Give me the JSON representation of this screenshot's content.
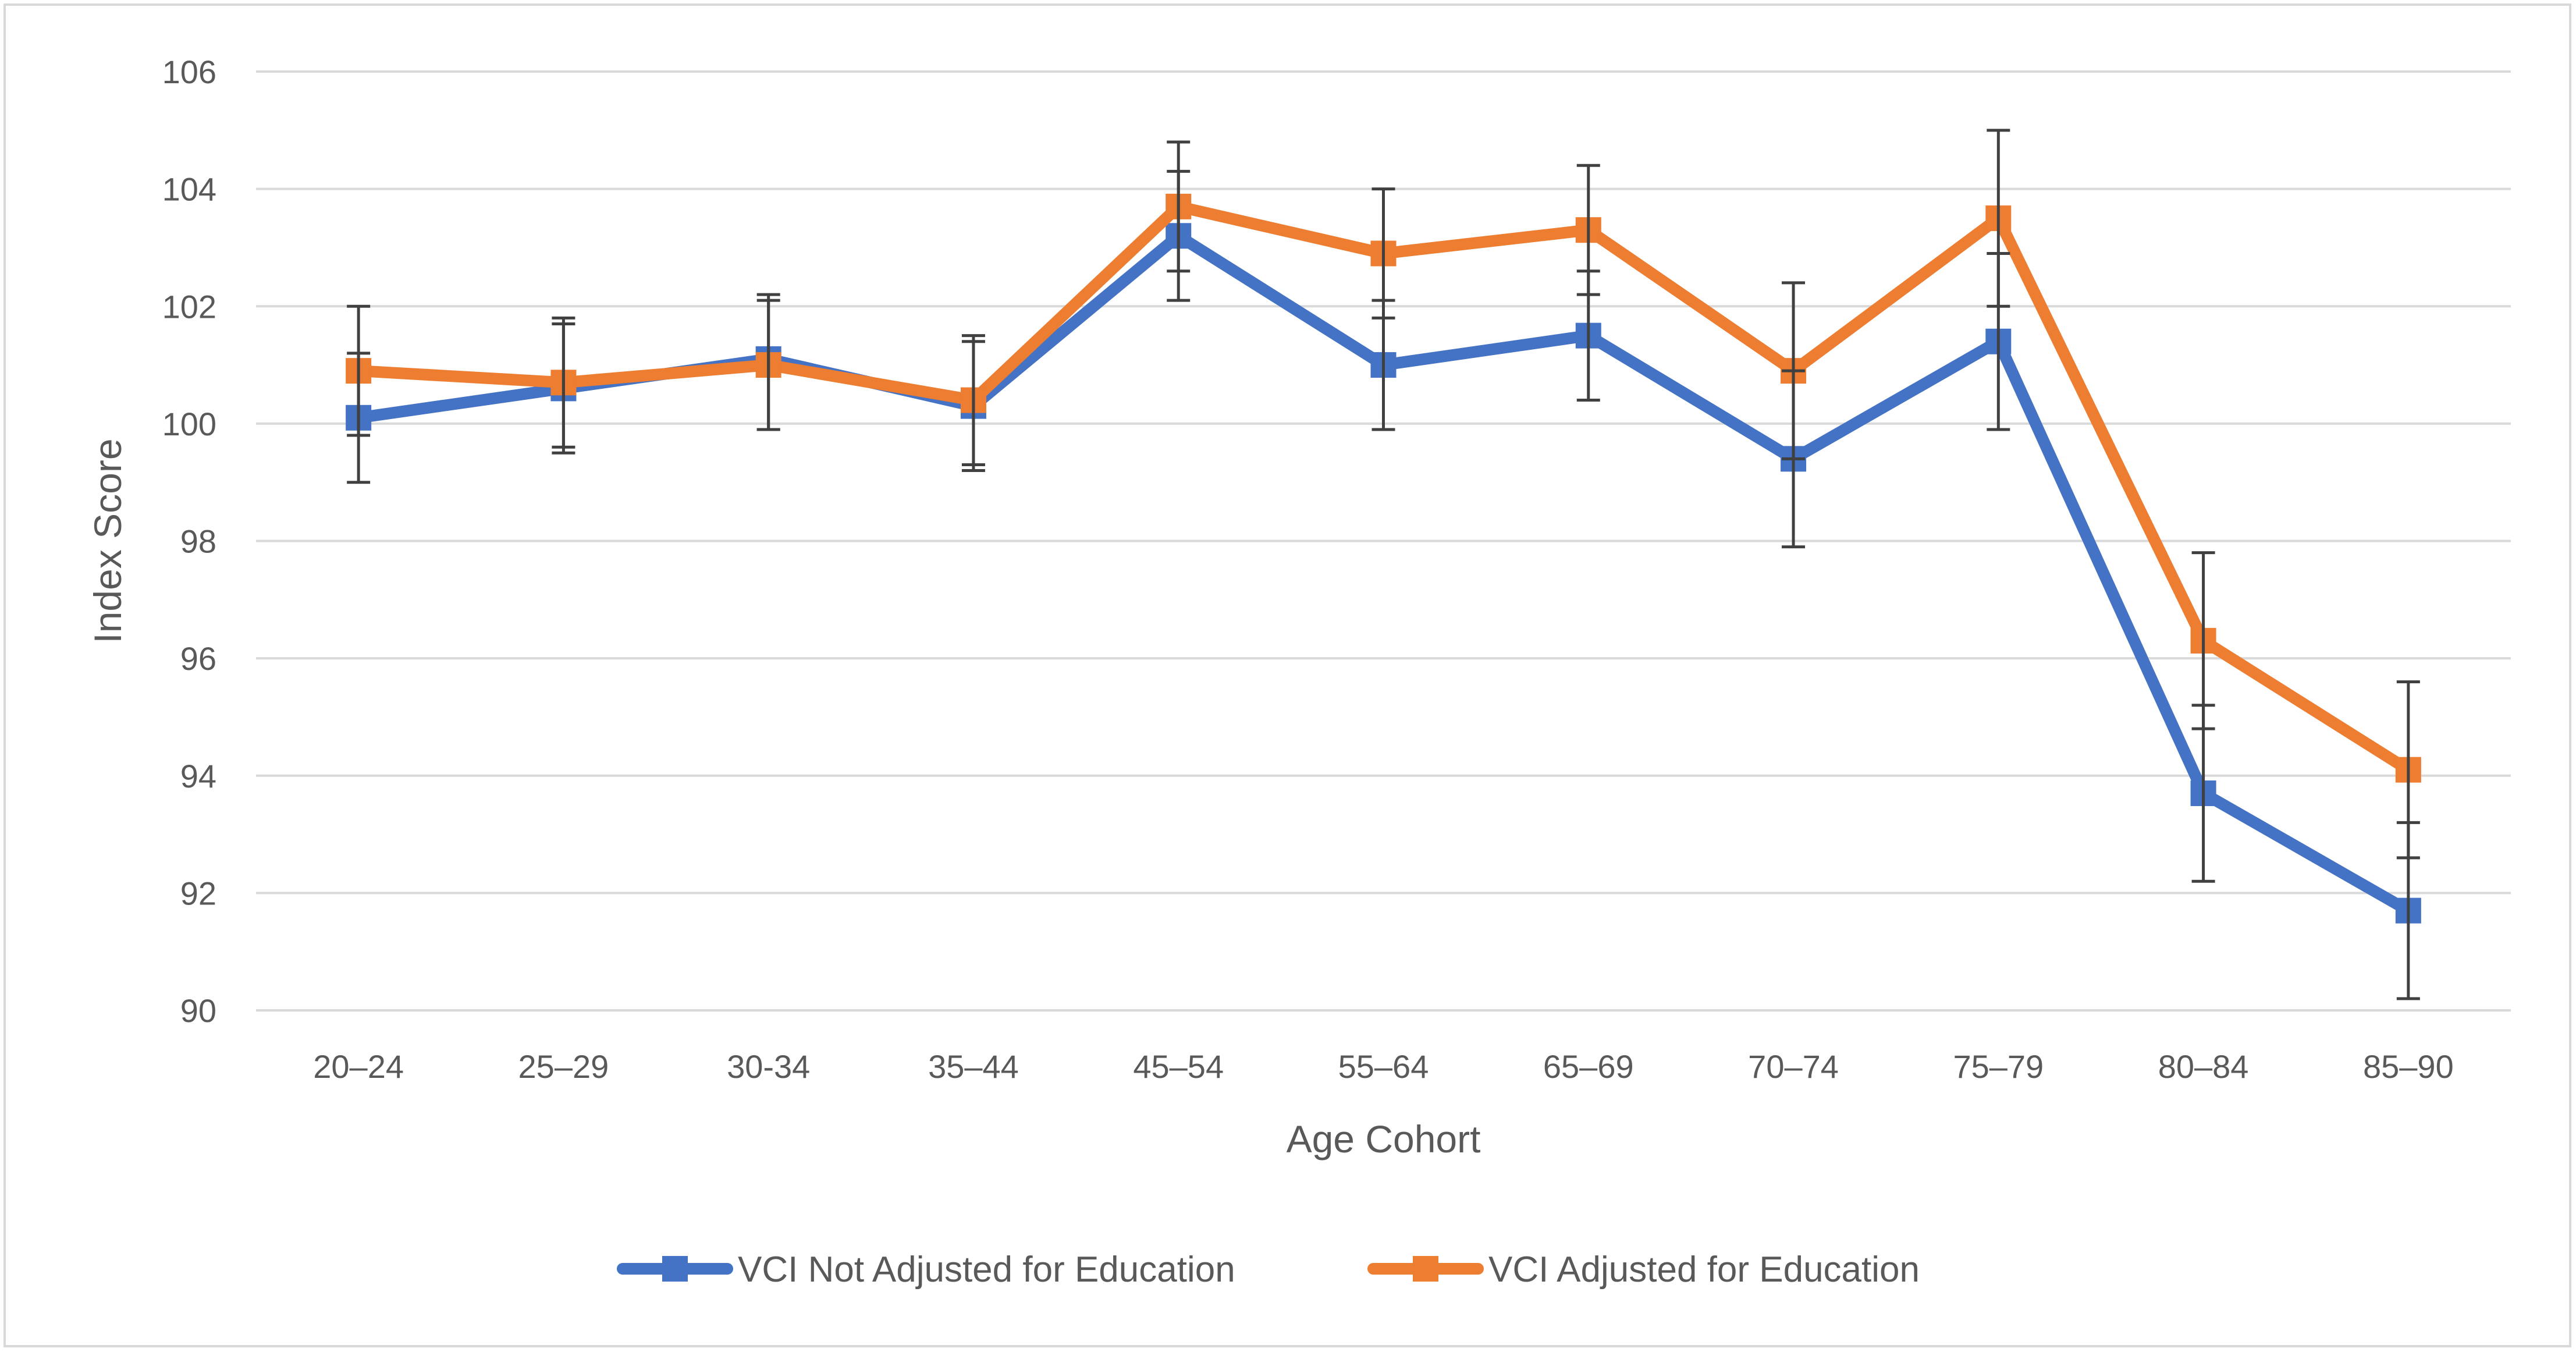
{
  "chart_data": {
    "type": "line",
    "title": "",
    "xlabel": "Age Cohort",
    "ylabel": "Index Score",
    "ylim": [
      90,
      106
    ],
    "y_ticks": [
      90,
      92,
      94,
      96,
      98,
      100,
      102,
      104,
      106
    ],
    "y_tick_labels": [
      "90",
      "92",
      "94",
      "96",
      "98",
      "100",
      "102",
      "104",
      "106"
    ],
    "grid": true,
    "legend_position": "bottom",
    "categories": [
      "20–24",
      "25–29",
      "30-34",
      "35–44",
      "45–54",
      "55–64",
      "65–69",
      "70–74",
      "75–79",
      "80–84",
      "85–90"
    ],
    "series": [
      {
        "name": "VCI Not Adjusted for Education",
        "color": "#4472c4",
        "values": [
          100.1,
          100.6,
          101.1,
          100.3,
          103.2,
          101.0,
          101.5,
          99.4,
          101.4,
          93.7,
          91.7
        ],
        "error_low": [
          99.0,
          99.5,
          99.9,
          99.2,
          102.1,
          99.9,
          100.4,
          97.9,
          99.9,
          92.2,
          90.2
        ],
        "error_high": [
          101.2,
          101.7,
          102.2,
          101.4,
          104.3,
          102.1,
          102.6,
          100.9,
          102.9,
          95.2,
          93.2
        ]
      },
      {
        "name": "VCI Adjusted for Education",
        "color": "#ed7d31",
        "values": [
          100.9,
          100.7,
          101.0,
          100.4,
          103.7,
          102.9,
          103.3,
          100.9,
          103.5,
          96.3,
          94.1
        ],
        "error_low": [
          99.8,
          99.6,
          99.9,
          99.3,
          102.6,
          101.8,
          102.2,
          99.4,
          102.0,
          94.8,
          92.6
        ],
        "error_high": [
          102.0,
          101.8,
          102.1,
          101.5,
          104.8,
          104.0,
          104.4,
          102.4,
          105.0,
          97.8,
          95.6
        ]
      }
    ]
  }
}
